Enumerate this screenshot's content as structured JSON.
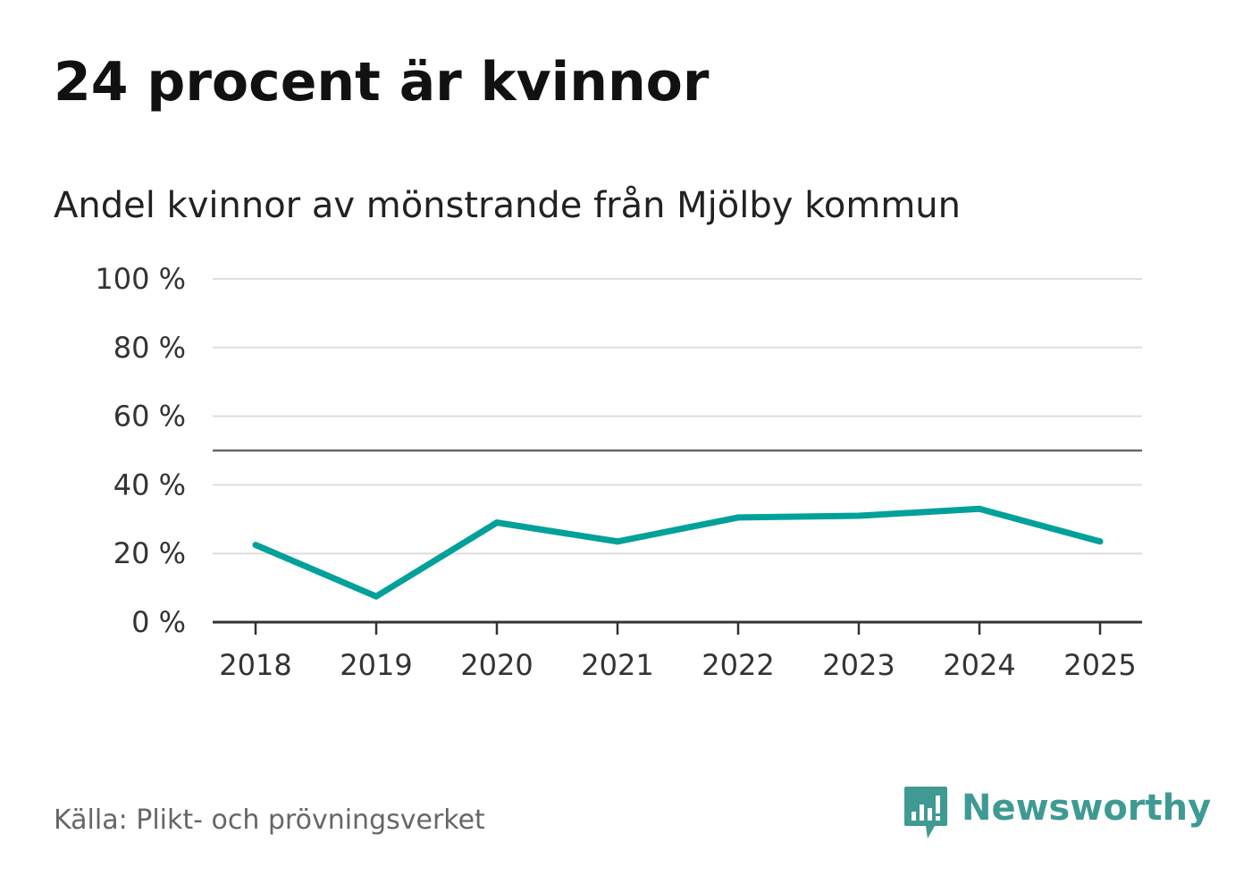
{
  "header": {
    "title": "24 procent är kvinnor",
    "subtitle": "Andel kvinnor av mönstrande från Mjölby kommun"
  },
  "footer": {
    "source": "Källa: Plikt- och prövningsverket",
    "brand_name": "Newsworthy",
    "brand_icon": "newsworthy-logo-icon"
  },
  "colors": {
    "line": "#00a19a",
    "grid": "#dddddd",
    "reference": "#666666",
    "axis": "#333333",
    "brand": "#3e9a92"
  },
  "chart_data": {
    "type": "line",
    "title": "Andel kvinnor av mönstrande från Mjölby kommun",
    "xlabel": "",
    "ylabel": "",
    "categories": [
      "2018",
      "2019",
      "2020",
      "2021",
      "2022",
      "2023",
      "2024",
      "2025"
    ],
    "series": [
      {
        "name": "Andel kvinnor",
        "values": [
          22.5,
          7.5,
          29,
          23.5,
          30.5,
          31,
          33,
          23.5
        ]
      }
    ],
    "ylim": [
      0,
      100
    ],
    "yticks": [
      0,
      20,
      40,
      60,
      80,
      100
    ],
    "ytick_labels": [
      "0 %",
      "20 %",
      "40 %",
      "60 %",
      "80 %",
      "100 %"
    ],
    "reference_line": 50,
    "grid": true,
    "legend": "none"
  }
}
